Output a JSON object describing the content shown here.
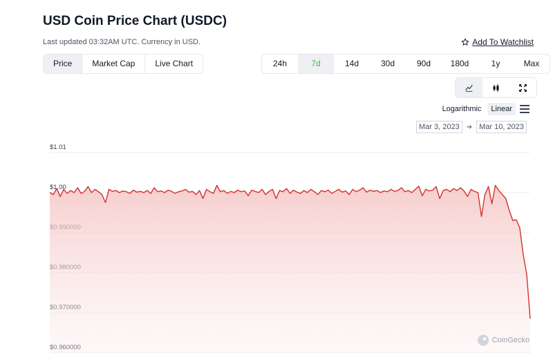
{
  "header": {
    "title": "USD Coin Price Chart (USDC)",
    "updated": "Last updated 03:32AM UTC. Currency in USD.",
    "watchlist_label": "Add To Watchlist"
  },
  "tabs": [
    {
      "label": "Price",
      "active": true
    },
    {
      "label": "Market Cap",
      "active": false
    },
    {
      "label": "Live Chart",
      "active": false
    }
  ],
  "ranges": [
    {
      "label": "24h",
      "active": false
    },
    {
      "label": "7d",
      "active": true
    },
    {
      "label": "14d",
      "active": false
    },
    {
      "label": "30d",
      "active": false
    },
    {
      "label": "90d",
      "active": false
    },
    {
      "label": "180d",
      "active": false
    },
    {
      "label": "1y",
      "active": false
    },
    {
      "label": "Max",
      "active": false
    }
  ],
  "chart_types": [
    {
      "icon": "line-chart-icon",
      "active": true
    },
    {
      "icon": "candlestick-icon",
      "active": false
    },
    {
      "icon": "fullscreen-icon",
      "active": false
    }
  ],
  "scale": {
    "logarithmic": "Logarithmic",
    "linear": "Linear",
    "selected": "linear"
  },
  "date_range": {
    "from": "Mar 3, 2023",
    "to": "Mar 10, 2023"
  },
  "watermark": "CoinGecko",
  "colors": {
    "line": "#d0312d",
    "fill": "#f4c5c4",
    "accent_green": "#4caf50"
  },
  "chart_data": {
    "type": "area",
    "x_range": [
      "Mar 3, 2023",
      "Mar 10, 2023"
    ],
    "y_ticks": [
      {
        "value": 1.01,
        "label": "$1.01"
      },
      {
        "value": 1.0,
        "label": "$1.00"
      },
      {
        "value": 0.99,
        "label": "$0.990000"
      },
      {
        "value": 0.98,
        "label": "$0.980000"
      },
      {
        "value": 0.97,
        "label": "$0.970000"
      },
      {
        "value": 0.96,
        "label": "$0.960000"
      }
    ],
    "ylim": [
      0.96,
      1.01
    ],
    "grid": true,
    "series": [
      {
        "values": [
          1.0,
          0.9995,
          1.001,
          0.999,
          1.0008,
          0.9998,
          1.0005,
          1.0,
          1.0012,
          0.9998,
          1.0003,
          1.0015,
          1.0,
          1.0008,
          1.0002,
          0.9995,
          0.9975,
          1.0008,
          1.0003,
          1.0005,
          1.0,
          1.0004,
          1.0002,
          0.9998,
          1.0006,
          1.0001,
          1.0003,
          1.0,
          1.0005,
          0.9998,
          1.0012,
          1.0002,
          1.0004,
          1.0,
          1.0006,
          1.0003,
          0.9998,
          1.0002,
          1.0004,
          1.0008,
          1.0001,
          1.0003,
          0.9995,
          1.0005,
          0.9985,
          1.0008,
          1.0002,
          0.9998,
          1.0018,
          1.0002,
          1.0005,
          0.9998,
          1.0003,
          1.0,
          1.0006,
          1.0002,
          1.0004,
          0.9992,
          1.0006,
          1.0003,
          1.0,
          1.0008,
          0.9995,
          1.0003,
          1.0008,
          0.9985,
          1.0005,
          1.0002,
          1.001,
          0.9998,
          1.0006,
          1.0001,
          0.9998,
          1.0005,
          1.0,
          1.0008,
          1.0002,
          0.9995,
          1.0005,
          1.0002,
          1.0006,
          0.9998,
          1.0003,
          1.0008,
          1.0001,
          1.0004,
          0.9995,
          1.0008,
          1.0002,
          1.0006,
          1.0012,
          1.0001,
          1.0006,
          1.0003,
          1.0005,
          1.0,
          1.0004,
          1.0002,
          1.0008,
          1.0003,
          1.0005,
          1.0012,
          1.0002,
          1.0005,
          1.0,
          1.0008,
          1.0016,
          0.9992,
          1.0008,
          1.0004,
          1.0006,
          1.0015,
          0.9985,
          1.0005,
          1.0008,
          1.0002,
          1.001,
          1.0005,
          1.0012,
          1.0004,
          0.999,
          1.0008,
          1.0003,
          1.0,
          0.994,
          0.9995,
          1.0015,
          0.9972,
          1.0018,
          1.0005,
          0.9995,
          0.9985,
          0.9955,
          0.993,
          0.9932,
          0.9912,
          0.9845,
          0.9795,
          0.9685
        ]
      }
    ]
  }
}
